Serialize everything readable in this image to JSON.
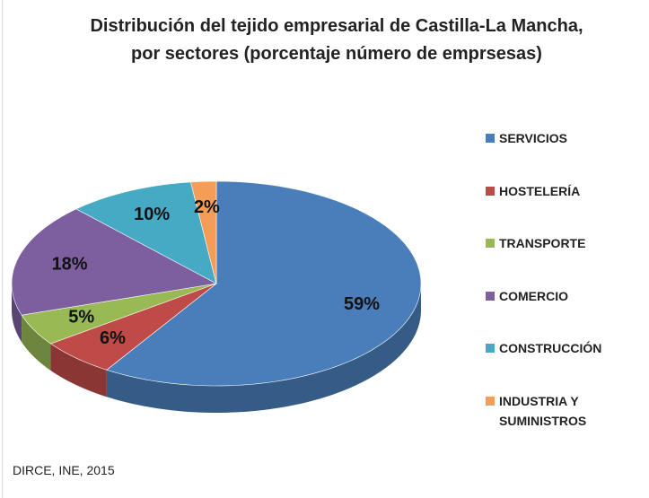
{
  "chart_data": {
    "type": "pie",
    "title": "Distribución del tejido empresarial de Castilla-La Mancha, por sectores (porcentaje número de emprsesas)",
    "categories": [
      "SERVICIOS",
      "HOSTELERÍA",
      "TRANSPORTE",
      "COMERCIO",
      "CONSTRUCCIÓN",
      "INDUSTRIA Y SUMINISTROS"
    ],
    "values": [
      59,
      6,
      5,
      18,
      10,
      2
    ],
    "value_labels": [
      "59%",
      "6%",
      "5%",
      "18%",
      "10%",
      "2%"
    ],
    "colors": [
      "#4a7ebb",
      "#be4b48",
      "#98b954",
      "#7d5fa0",
      "#46aac5",
      "#f59d56"
    ],
    "legend": "right",
    "source": "DIRCE, INE, 2015"
  }
}
